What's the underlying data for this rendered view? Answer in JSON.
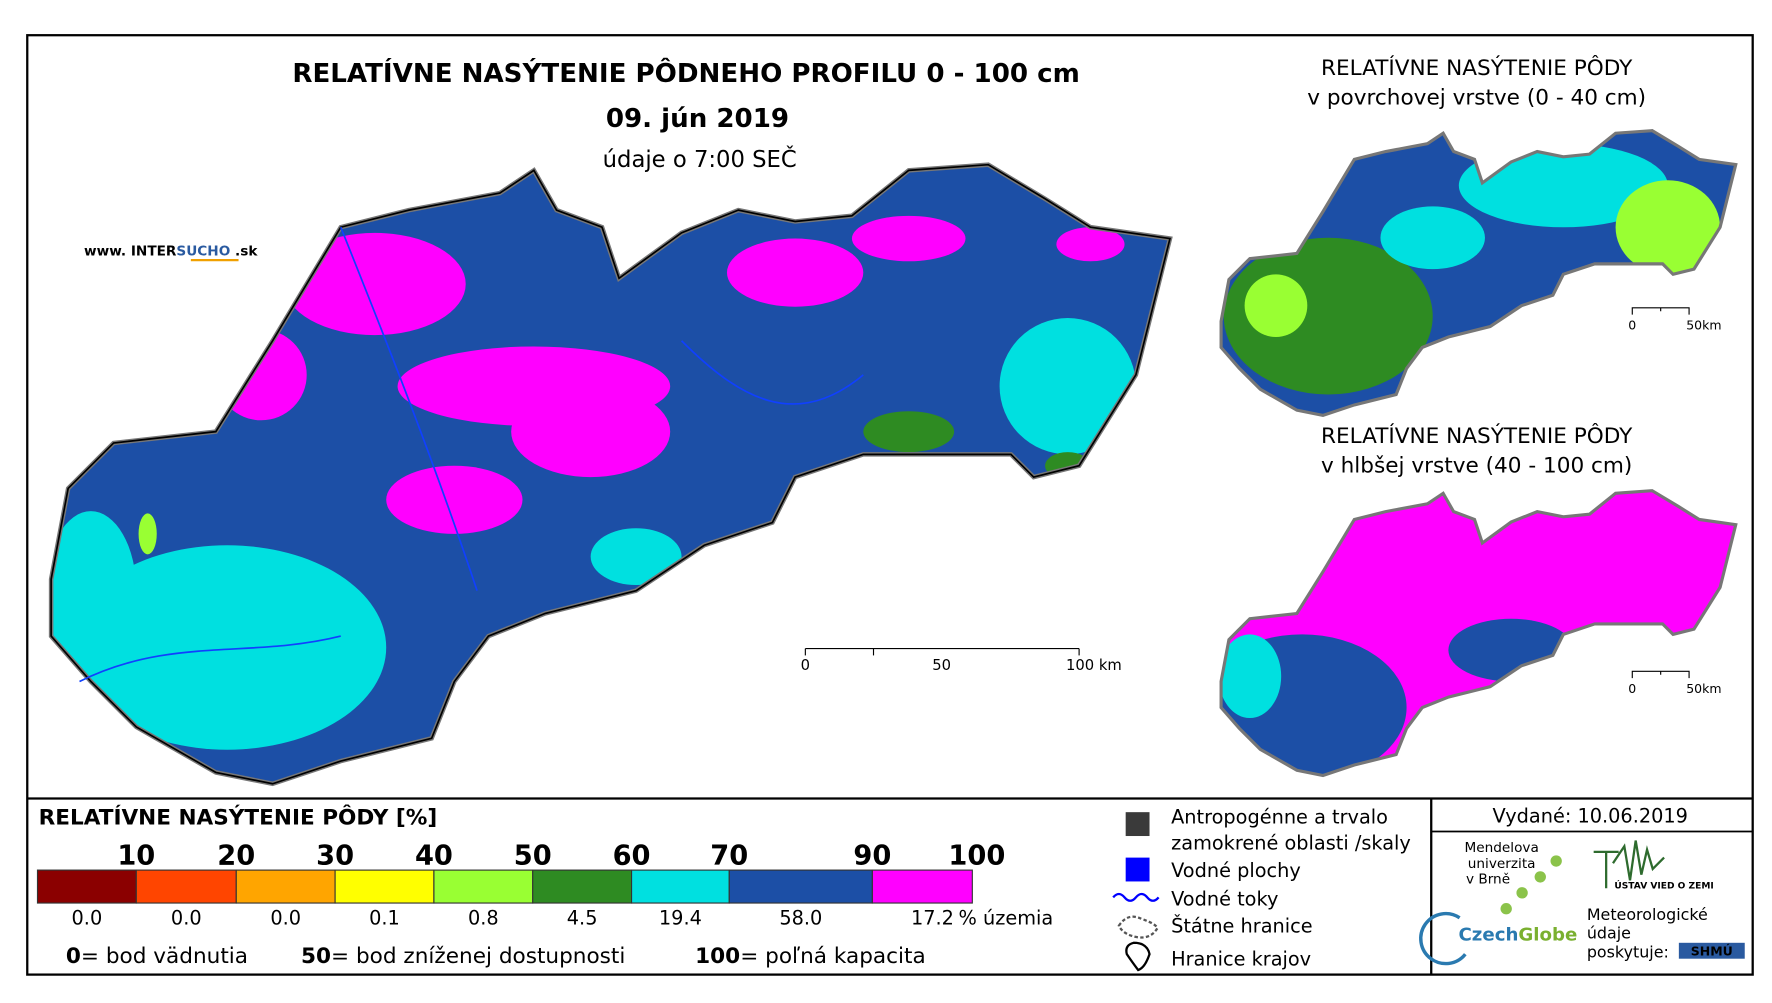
{
  "header": {
    "title": "RELATÍVNE NASÝTENIE PÔDNEHO PROFILU 0 - 100 cm",
    "date": "09. jún 2019",
    "time_note": "údaje o 7:00 SEČ",
    "website_prefix": "www. INTER",
    "website_highlight": "SUCHO",
    "website_suffix": " .sk"
  },
  "main_map": {
    "scale_labels": [
      "0",
      "50",
      "100 km"
    ]
  },
  "insets": [
    {
      "title_lines": [
        "RELATÍVNE NASÝTENIE PÔDY",
        "v povrchovej vrstve (0 - 40 cm)"
      ],
      "scale_labels": [
        "0",
        "50km"
      ]
    },
    {
      "title_lines": [
        "RELATÍVNE NASÝTENIE PÔDY",
        "v hlbšej vrstve (40 - 100 cm)"
      ],
      "scale_labels": [
        "0",
        "50km"
      ]
    }
  ],
  "legend": {
    "title": "RELATÍVNE NASÝTENIE PÔDY [%]",
    "thresholds": [
      10,
      20,
      30,
      40,
      50,
      60,
      70,
      90,
      100
    ],
    "classes": [
      {
        "color": "#8b0000",
        "share": "0.0"
      },
      {
        "color": "#ff4500",
        "share": "0.0"
      },
      {
        "color": "#ffa500",
        "share": "0.0"
      },
      {
        "color": "#ffff00",
        "share": "0.1"
      },
      {
        "color": "#99ff33",
        "share": "0.8"
      },
      {
        "color": "#2e8b22",
        "share": "4.5"
      },
      {
        "color": "#00e0e0",
        "share": "19.4"
      },
      {
        "color": "#1c4fa6",
        "share": "58.0"
      },
      {
        "color": "#ff00ff",
        "share": "17.2"
      }
    ],
    "share_unit": "% územia",
    "definitions": [
      {
        "value": "0",
        "text": "= bod vädnutia"
      },
      {
        "value": "50",
        "text": "= bod zníženej dostupnosti"
      },
      {
        "value": "100",
        "text": "= poľná kapacita"
      }
    ]
  },
  "symbols": [
    {
      "lines": [
        "Antropogénne a trvalo",
        "zamokrené oblasti /skaly"
      ]
    },
    {
      "lines": [
        "Vodné plochy"
      ]
    },
    {
      "lines": [
        "Vodné toky"
      ]
    },
    {
      "lines": [
        "Štátne hranice"
      ]
    },
    {
      "lines": [
        "Hranice krajov"
      ]
    }
  ],
  "footer": {
    "issued": "Vydané: 10.06.2019",
    "mendel": [
      "Mendelova",
      "univerzita",
      "v Brně"
    ],
    "czechglobe_a": "Czech",
    "czechglobe_b": "Globe",
    "ustav": "ÚSTAV VIED O ZEMI",
    "meteo": [
      "Meteorologické",
      "údaje",
      "poskytuje:"
    ],
    "shmu": "SHMÚ"
  }
}
